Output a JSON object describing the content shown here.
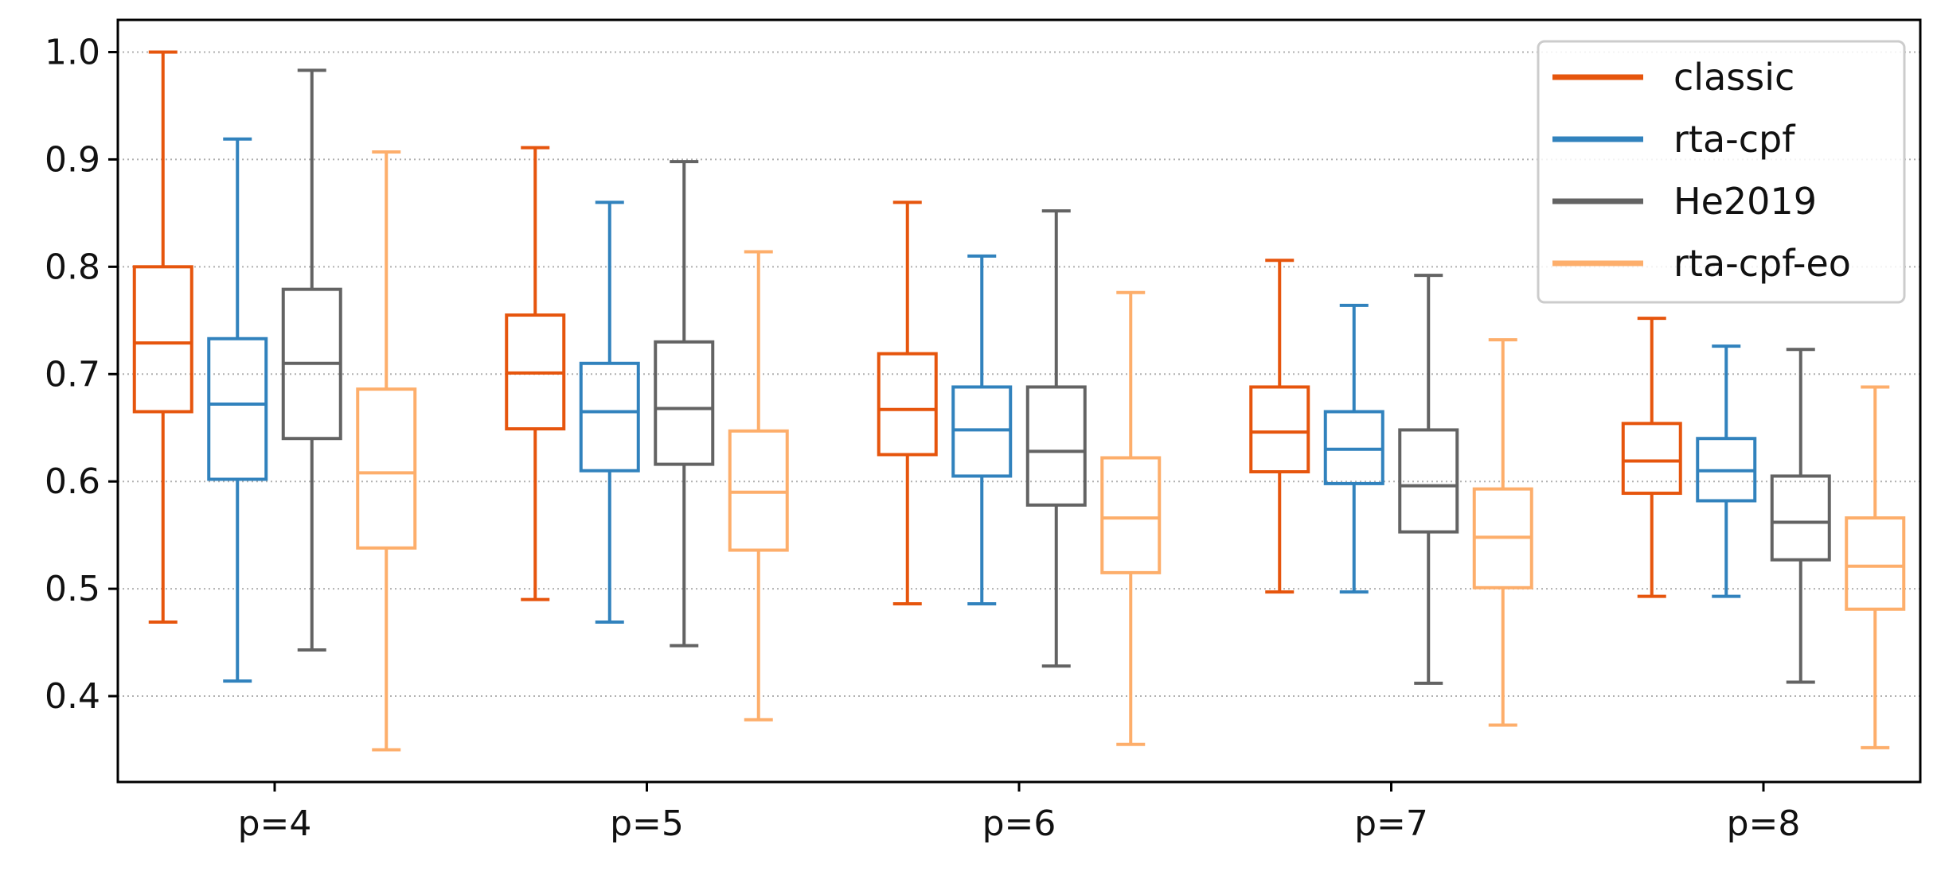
{
  "chart_data": {
    "type": "box",
    "title": "",
    "xlabel": "",
    "ylabel": "",
    "ylim": [
      0.32,
      1.03
    ],
    "yticks": [
      "0.4",
      "0.5",
      "0.6",
      "0.7",
      "0.8",
      "0.9",
      "1.0"
    ],
    "grid": "horizontal-dotted",
    "legend_position": "top-right",
    "categories": [
      "p=4",
      "p=5",
      "p=6",
      "p=7",
      "p=8"
    ],
    "series": [
      {
        "name": "classic",
        "color": "#e6550d",
        "boxes": [
          {
            "min": 0.469,
            "q1": 0.665,
            "median": 0.729,
            "q3": 0.8,
            "max": 1.0
          },
          {
            "min": 0.49,
            "q1": 0.649,
            "median": 0.701,
            "q3": 0.755,
            "max": 0.911
          },
          {
            "min": 0.486,
            "q1": 0.625,
            "median": 0.667,
            "q3": 0.719,
            "max": 0.86
          },
          {
            "min": 0.497,
            "q1": 0.609,
            "median": 0.646,
            "q3": 0.688,
            "max": 0.806
          },
          {
            "min": 0.493,
            "q1": 0.589,
            "median": 0.619,
            "q3": 0.654,
            "max": 0.752
          }
        ]
      },
      {
        "name": "rta-cpf",
        "color": "#3182bd",
        "boxes": [
          {
            "min": 0.414,
            "q1": 0.602,
            "median": 0.672,
            "q3": 0.733,
            "max": 0.919
          },
          {
            "min": 0.469,
            "q1": 0.61,
            "median": 0.665,
            "q3": 0.71,
            "max": 0.86
          },
          {
            "min": 0.486,
            "q1": 0.605,
            "median": 0.648,
            "q3": 0.688,
            "max": 0.81
          },
          {
            "min": 0.497,
            "q1": 0.598,
            "median": 0.63,
            "q3": 0.665,
            "max": 0.764
          },
          {
            "min": 0.493,
            "q1": 0.582,
            "median": 0.61,
            "q3": 0.64,
            "max": 0.726
          }
        ]
      },
      {
        "name": "He2019",
        "color": "#636363",
        "boxes": [
          {
            "min": 0.443,
            "q1": 0.64,
            "median": 0.71,
            "q3": 0.779,
            "max": 0.983
          },
          {
            "min": 0.447,
            "q1": 0.616,
            "median": 0.668,
            "q3": 0.73,
            "max": 0.898
          },
          {
            "min": 0.428,
            "q1": 0.578,
            "median": 0.628,
            "q3": 0.688,
            "max": 0.852
          },
          {
            "min": 0.412,
            "q1": 0.553,
            "median": 0.596,
            "q3": 0.648,
            "max": 0.792
          },
          {
            "min": 0.413,
            "q1": 0.527,
            "median": 0.562,
            "q3": 0.605,
            "max": 0.723
          }
        ]
      },
      {
        "name": "rta-cpf-eo",
        "color": "#fdae6b",
        "boxes": [
          {
            "min": 0.35,
            "q1": 0.538,
            "median": 0.608,
            "q3": 0.686,
            "max": 0.907
          },
          {
            "min": 0.378,
            "q1": 0.536,
            "median": 0.59,
            "q3": 0.647,
            "max": 0.814
          },
          {
            "min": 0.355,
            "q1": 0.515,
            "median": 0.566,
            "q3": 0.622,
            "max": 0.776
          },
          {
            "min": 0.373,
            "q1": 0.501,
            "median": 0.548,
            "q3": 0.593,
            "max": 0.732
          },
          {
            "min": 0.352,
            "q1": 0.481,
            "median": 0.521,
            "q3": 0.566,
            "max": 0.688
          }
        ]
      }
    ]
  }
}
